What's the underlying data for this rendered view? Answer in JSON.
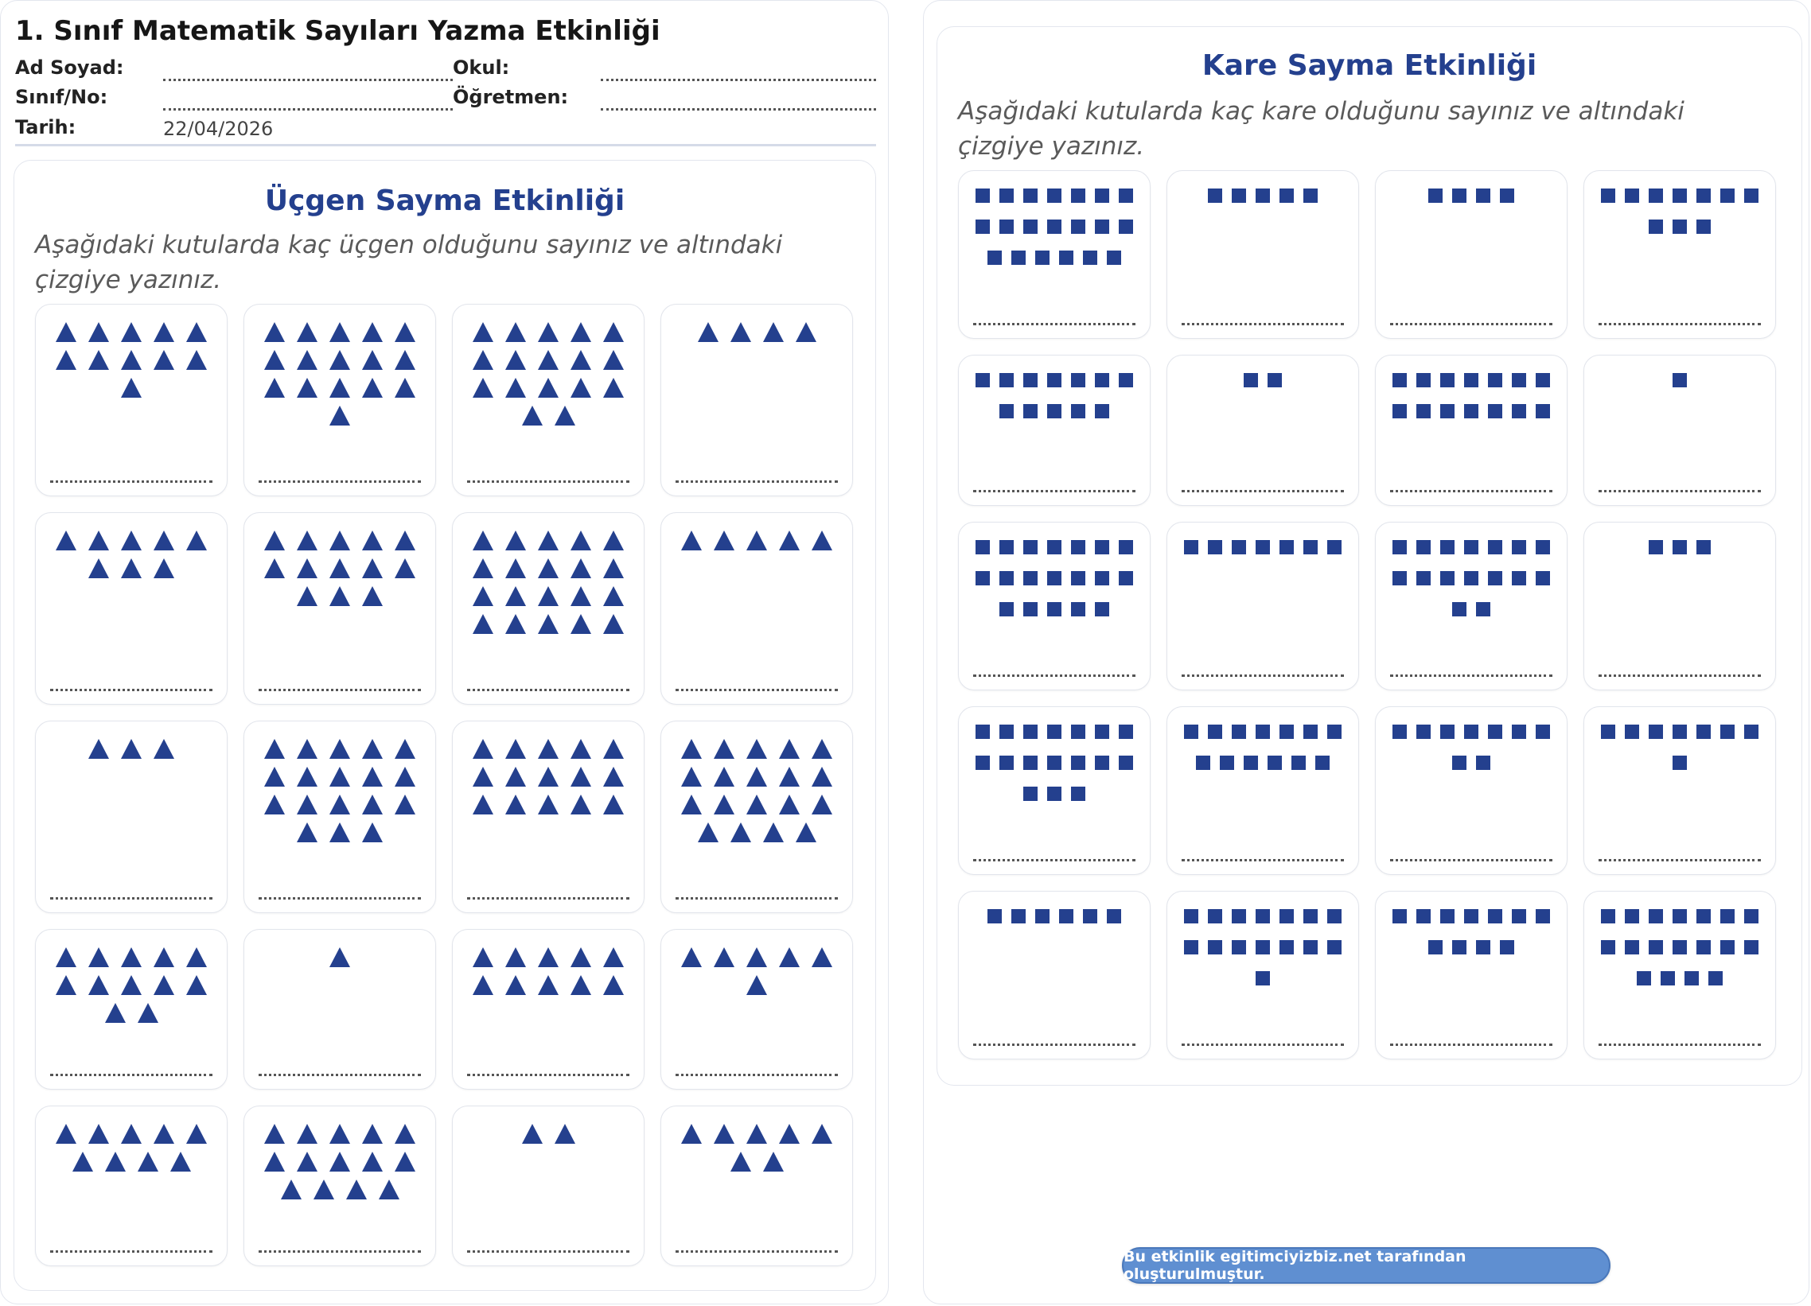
{
  "header": {
    "title": "1. Sınıf Matematik Sayıları Yazma Etkinliği",
    "name_label": "Ad Soyad:",
    "school_label": "Okul:",
    "class_label": "Sınıf/No:",
    "teacher_label": "Öğretmen:",
    "date_label": "Tarih:",
    "date_value": "22/04/2026"
  },
  "triangle_activity": {
    "title": "Üçgen Sayma Etkinliği",
    "instruction": "Aşağıdaki kutularda kaç üçgen olduğunu sayınız ve altındaki çizgiye yazınız.",
    "shape": "triangle",
    "cards": [
      {
        "rows": [
          5,
          5,
          1
        ]
      },
      {
        "rows": [
          5,
          5,
          5,
          1
        ]
      },
      {
        "rows": [
          5,
          5,
          5,
          2
        ]
      },
      {
        "rows": [
          4
        ]
      },
      {
        "rows": [
          5,
          3
        ]
      },
      {
        "rows": [
          5,
          5,
          3
        ]
      },
      {
        "rows": [
          5,
          5,
          5,
          5
        ]
      },
      {
        "rows": [
          5
        ]
      },
      {
        "rows": [
          3
        ]
      },
      {
        "rows": [
          5,
          5,
          5,
          3
        ]
      },
      {
        "rows": [
          5,
          5,
          5
        ]
      },
      {
        "rows": [
          5,
          5,
          5,
          4
        ]
      },
      {
        "rows": [
          5,
          5,
          2
        ]
      },
      {
        "rows": [
          1
        ]
      },
      {
        "rows": [
          5,
          5
        ]
      },
      {
        "rows": [
          5,
          1
        ]
      },
      {
        "rows": [
          5,
          4
        ]
      },
      {
        "rows": [
          5,
          5,
          4
        ]
      },
      {
        "rows": [
          2
        ]
      },
      {
        "rows": [
          5,
          2
        ]
      }
    ]
  },
  "square_activity": {
    "title": "Kare Sayma Etkinliği",
    "instruction": "Aşağıdaki kutularda kaç kare olduğunu sayınız ve altındaki çizgiye yazınız.",
    "shape": "square",
    "cards": [
      {
        "rows": [
          7,
          7,
          6
        ]
      },
      {
        "rows": [
          5
        ]
      },
      {
        "rows": [
          4
        ]
      },
      {
        "rows": [
          7,
          3
        ]
      },
      {
        "rows": [
          7,
          5
        ]
      },
      {
        "rows": [
          2
        ]
      },
      {
        "rows": [
          7,
          7
        ]
      },
      {
        "rows": [
          1
        ]
      },
      {
        "rows": [
          7,
          7,
          5
        ]
      },
      {
        "rows": [
          7
        ]
      },
      {
        "rows": [
          7,
          7,
          2
        ]
      },
      {
        "rows": [
          3
        ]
      },
      {
        "rows": [
          7,
          7,
          3
        ]
      },
      {
        "rows": [
          7,
          6
        ]
      },
      {
        "rows": [
          7,
          2
        ]
      },
      {
        "rows": [
          7,
          1
        ]
      },
      {
        "rows": [
          6
        ]
      },
      {
        "rows": [
          7,
          7,
          1
        ]
      },
      {
        "rows": [
          7,
          4
        ]
      },
      {
        "rows": [
          7,
          7,
          4
        ]
      }
    ]
  },
  "footer": {
    "text": "Bu etkinlik egitimciyizbiz.net tarafından oluşturulmuştur."
  },
  "colors": {
    "accent": "#24408e",
    "badge": "#5f8fd1"
  }
}
